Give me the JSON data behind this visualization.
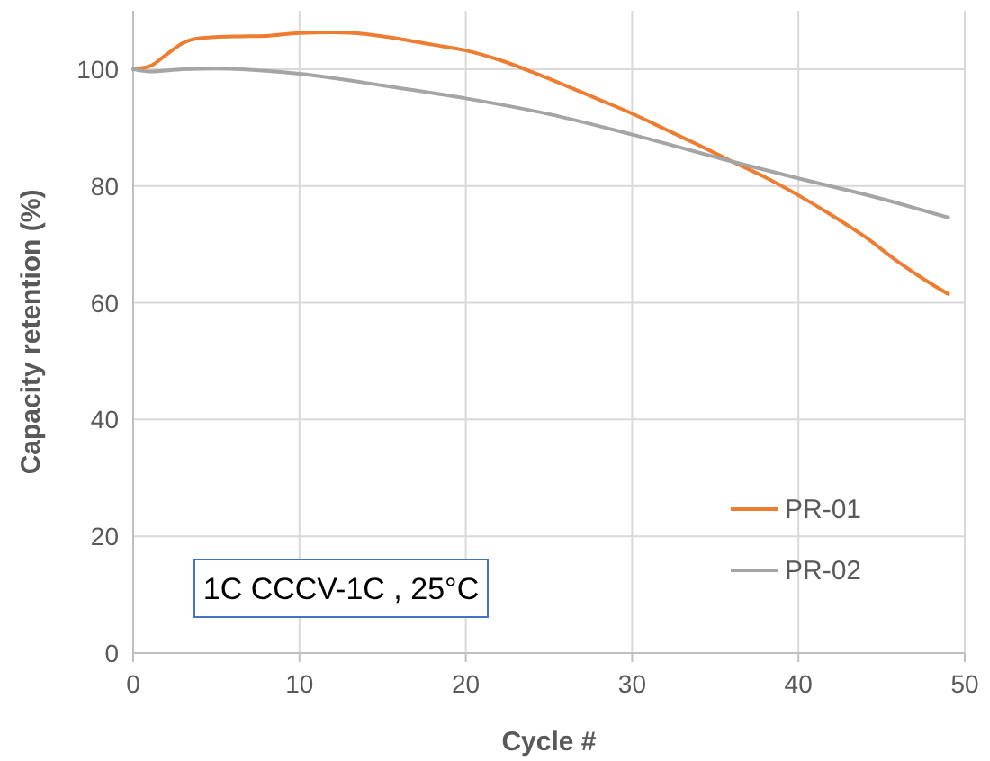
{
  "chart_data": {
    "type": "line",
    "xlabel": "Cycle #",
    "ylabel": "Capacity retention (%)",
    "xlim": [
      0,
      50
    ],
    "xticks": [
      0,
      10,
      20,
      30,
      40,
      50
    ],
    "ylim": [
      0,
      110
    ],
    "yticks": [
      0,
      20,
      40,
      60,
      80,
      100
    ],
    "grid": true,
    "legend": "bottom right",
    "marker": "none",
    "line_style": "solid",
    "annotations": [
      "1C CCCV-1C , 25°C"
    ],
    "series": [
      {
        "name": "PR-01",
        "color": "#ed7d31",
        "x": [
          0,
          1,
          2,
          3,
          4,
          6,
          8,
          10,
          12,
          14,
          16,
          18,
          20,
          22,
          24,
          26,
          28,
          30,
          32,
          34,
          36,
          38,
          40,
          42,
          44,
          46,
          48,
          49
        ],
        "values": [
          100,
          100.5,
          102.5,
          104.5,
          105.3,
          105.6,
          105.7,
          106.2,
          106.3,
          106,
          105.2,
          104.2,
          103.2,
          101.6,
          99.5,
          97.2,
          94.8,
          92.4,
          89.7,
          87,
          84.2,
          81.5,
          78.4,
          75,
          71.3,
          67,
          63.2,
          61.5
        ]
      },
      {
        "name": "PR-02",
        "color": "#a5a5a5",
        "x": [
          0,
          1,
          3,
          5,
          8,
          10,
          12,
          15,
          20,
          25,
          30,
          36,
          40,
          45,
          49
        ],
        "values": [
          100,
          99.6,
          100,
          100.1,
          99.7,
          99.2,
          98.5,
          97.2,
          95,
          92.3,
          88.8,
          84.2,
          81.3,
          77.8,
          74.6
        ]
      }
    ]
  }
}
